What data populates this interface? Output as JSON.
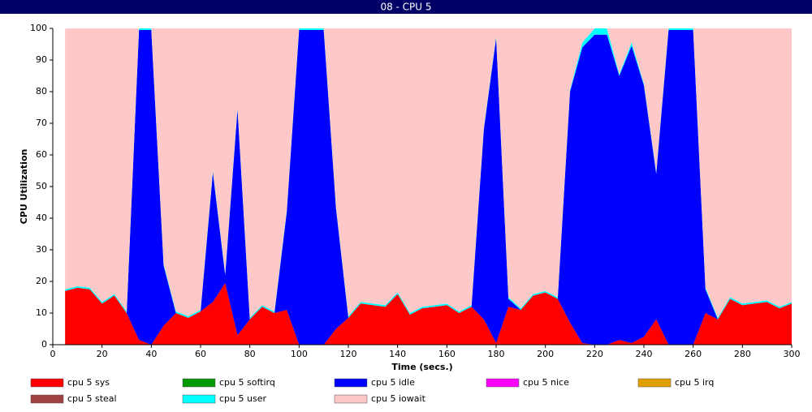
{
  "chart_data": {
    "type": "stacked-area",
    "title": "08 - CPU 5",
    "x_label": "Time (secs.)",
    "y_label": "CPU Utilization",
    "xlim": [
      0,
      300
    ],
    "xticks": [
      0,
      20,
      40,
      60,
      80,
      100,
      120,
      140,
      160,
      180,
      200,
      220,
      240,
      260,
      280,
      300
    ],
    "ylim": [
      0,
      100
    ],
    "yticks": [
      0,
      10,
      20,
      30,
      40,
      50,
      60,
      70,
      80,
      90,
      100
    ],
    "x": [
      5,
      10,
      15,
      20,
      25,
      30,
      35,
      40,
      45,
      50,
      55,
      60,
      65,
      70,
      75,
      80,
      85,
      90,
      95,
      100,
      105,
      110,
      115,
      120,
      125,
      130,
      135,
      140,
      145,
      150,
      155,
      160,
      165,
      170,
      175,
      180,
      185,
      190,
      195,
      200,
      205,
      210,
      215,
      220,
      225,
      230,
      235,
      240,
      245,
      250,
      255,
      260,
      265,
      270,
      275,
      280,
      285,
      290,
      295,
      300
    ],
    "series": [
      {
        "name": "cpu 5 sys",
        "color": "#ff0000",
        "values": [
          17,
          18,
          17.5,
          13,
          15.5,
          10,
          1.5,
          0,
          6,
          10,
          8.5,
          10.5,
          13.5,
          19.5,
          3,
          8,
          12,
          10,
          11,
          0,
          0,
          0,
          5,
          8.5,
          13,
          12.5,
          12,
          16,
          9.5,
          11.5,
          12,
          12.5,
          10,
          12,
          8,
          0.5,
          12,
          11,
          15.5,
          16.5,
          14.5,
          7,
          0.5,
          0,
          0,
          1.5,
          0.5,
          2.5,
          8,
          0,
          0,
          0,
          10,
          8,
          14.5,
          12.5,
          13,
          13.5,
          11.5,
          13
        ]
      },
      {
        "name": "cpu 5 softirq",
        "color": "#009900",
        "values": [
          0,
          0,
          0,
          0,
          0,
          0,
          0,
          0,
          0,
          0,
          0,
          0,
          0,
          0,
          0,
          0,
          0,
          0,
          0,
          0,
          0,
          0,
          0,
          0,
          0,
          0,
          0,
          0,
          0,
          0,
          0,
          0,
          0,
          0,
          0,
          0,
          0,
          0,
          0,
          0,
          0,
          0,
          0,
          0,
          0,
          0,
          0,
          0,
          0,
          0,
          0,
          0,
          0,
          0,
          0,
          0,
          0,
          0,
          0,
          0
        ]
      },
      {
        "name": "cpu 5 idle",
        "color": "#0000ff",
        "values": [
          0,
          0,
          0,
          0,
          0,
          0,
          98,
          99.5,
          19,
          0,
          0,
          0,
          41,
          2.5,
          71.5,
          0,
          0,
          0,
          31,
          99.5,
          99.5,
          99.5,
          38,
          0,
          0,
          0,
          0,
          0,
          0,
          0,
          0,
          0,
          0,
          0,
          60,
          96.5,
          2.5,
          0,
          0,
          0,
          0,
          73,
          93.5,
          98,
          98,
          83.5,
          94,
          79.5,
          46,
          99.5,
          99.5,
          99.5,
          7.5,
          0,
          0,
          0,
          0,
          0,
          0,
          0
        ]
      },
      {
        "name": "cpu 5 nice",
        "color": "#ff00ff",
        "values": [
          0,
          0,
          0,
          0,
          0,
          0,
          0,
          0,
          0,
          0,
          0,
          0,
          0,
          0,
          0,
          0,
          0,
          0,
          0,
          0,
          0,
          0,
          0,
          0,
          0,
          0,
          0,
          0,
          0,
          0,
          0,
          0,
          0,
          0,
          0,
          0,
          0,
          0,
          0,
          0,
          0,
          0,
          0,
          0,
          0,
          0,
          0,
          0,
          0,
          0,
          0,
          0,
          0,
          0,
          0,
          0,
          0,
          0,
          0,
          0
        ]
      },
      {
        "name": "cpu 5 irq",
        "color": "#e0a000",
        "values": [
          0,
          0,
          0,
          0,
          0,
          0,
          0,
          0,
          0,
          0,
          0,
          0,
          0,
          0,
          0,
          0,
          0,
          0,
          0,
          0,
          0,
          0,
          0,
          0,
          0,
          0,
          0,
          0,
          0,
          0,
          0,
          0,
          0,
          0,
          0,
          0,
          0,
          0,
          0,
          0,
          0,
          0,
          0,
          0,
          0,
          0,
          0,
          0,
          0,
          0,
          0,
          0,
          0,
          0,
          0,
          0,
          0,
          0,
          0,
          0
        ]
      },
      {
        "name": "cpu 5 steal",
        "color": "#a04040",
        "values": [
          0,
          0,
          0,
          0,
          0,
          0,
          0,
          0,
          0,
          0,
          0,
          0,
          0,
          0,
          0,
          0,
          0,
          0,
          0,
          0,
          0,
          0,
          0,
          0,
          0,
          0,
          0,
          0,
          0,
          0,
          0,
          0,
          0,
          0,
          0,
          0,
          0,
          0,
          0,
          0,
          0,
          0,
          0,
          0,
          0,
          0,
          0,
          0,
          0,
          0,
          0,
          0,
          0,
          0,
          0,
          0,
          0,
          0,
          0,
          0
        ]
      },
      {
        "name": "cpu 5 user",
        "color": "#00ffff",
        "values": [
          0.5,
          0.5,
          0.5,
          0.5,
          0.5,
          0.5,
          0.5,
          0.5,
          0.5,
          0.5,
          0.5,
          0.5,
          0.5,
          0.5,
          0.5,
          0.5,
          0.5,
          0.5,
          0.5,
          0.5,
          0.5,
          0.5,
          0.5,
          0.5,
          0.5,
          0.5,
          0.5,
          0.5,
          0.5,
          0.5,
          0.5,
          0.5,
          0.5,
          0.5,
          0.5,
          0.5,
          0.5,
          0.5,
          0.5,
          0.5,
          0.5,
          0.5,
          1.5,
          2,
          2,
          0.5,
          1,
          0.5,
          0.5,
          0.5,
          0.5,
          0.5,
          0.5,
          0.5,
          0.5,
          0.5,
          0.5,
          0.5,
          0.5,
          0.5
        ]
      },
      {
        "name": "cpu 5 iowait",
        "color": "#ffc8c8",
        "values": [
          82.5,
          81.5,
          82,
          86.5,
          84,
          89.5,
          0,
          0,
          74.5,
          89.5,
          91,
          89,
          45,
          77.5,
          25,
          91.5,
          87.5,
          89.5,
          57.5,
          0,
          0,
          0,
          56.5,
          91,
          86.5,
          87,
          87.5,
          83.5,
          90,
          88,
          87.5,
          87,
          89.5,
          87.5,
          31.5,
          2.5,
          85,
          88.5,
          84,
          83,
          85,
          19.5,
          4.5,
          0,
          0,
          14.5,
          4.5,
          17.5,
          45.5,
          0,
          0,
          0,
          82,
          91.5,
          85,
          87,
          86.5,
          86,
          88,
          86.5
        ]
      }
    ]
  }
}
